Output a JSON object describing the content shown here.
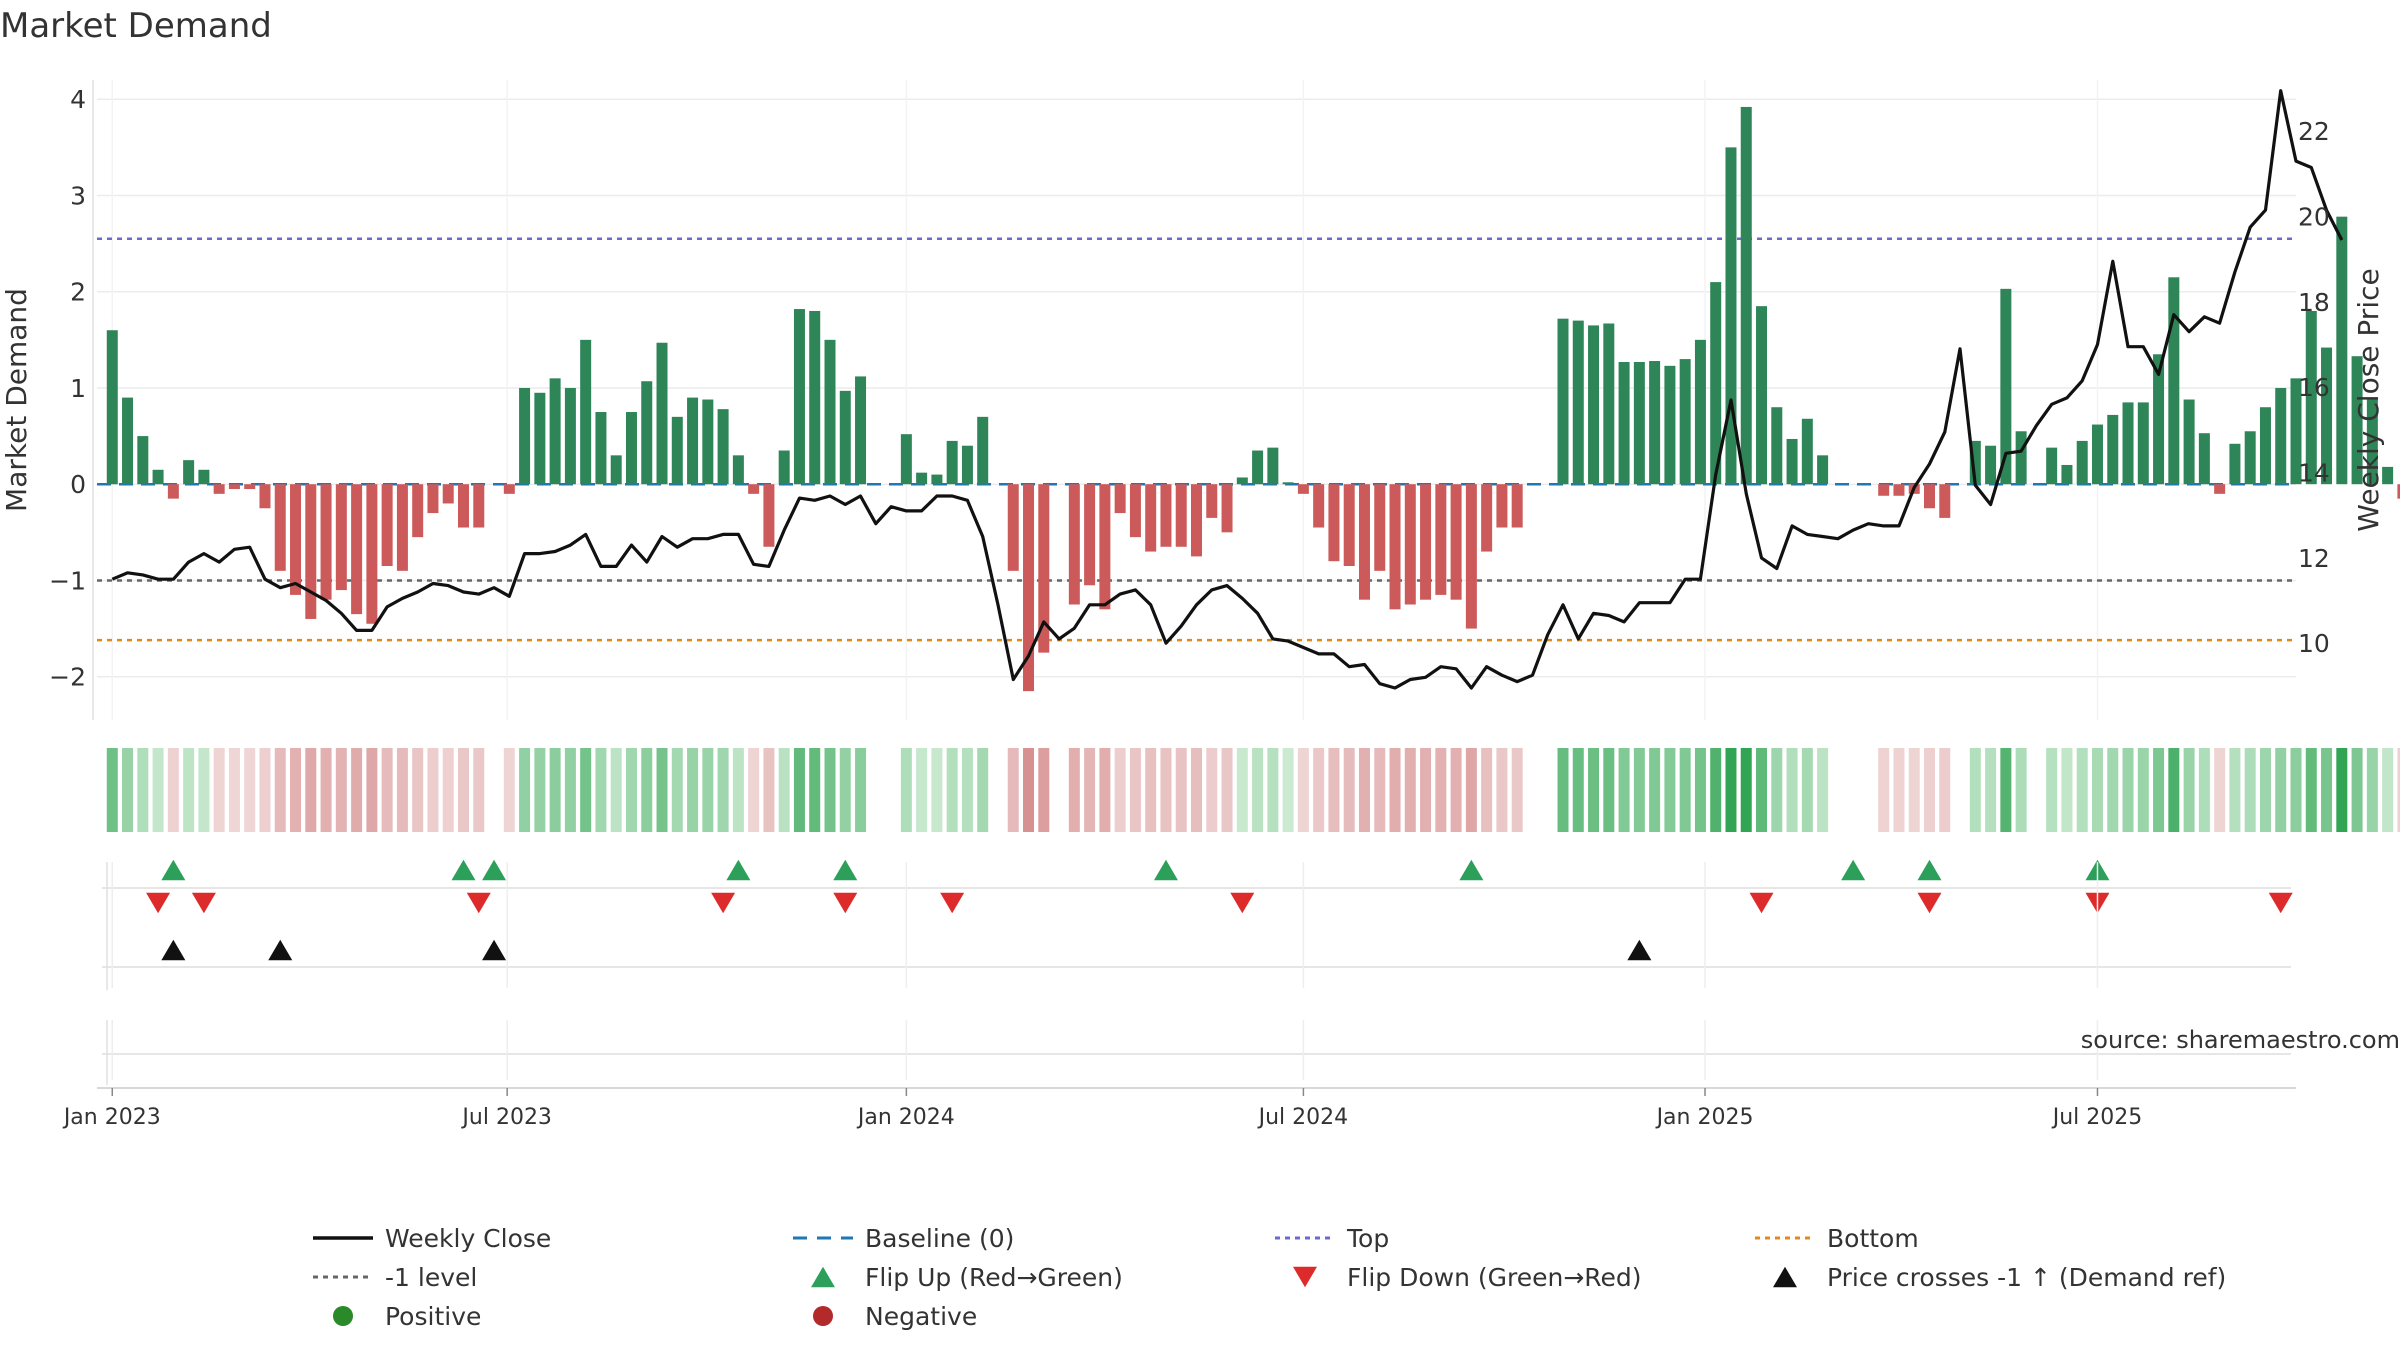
{
  "chart_data": {
    "type": "bar",
    "title": "Market Demand",
    "source": "source: sharemaestro.com",
    "ylabel": "Market Demand",
    "y2label": "Weekly Close Price",
    "ylim": [
      -2.45,
      4.2
    ],
    "y2lim": [
      8.2,
      23.2
    ],
    "yticks": [
      4,
      3,
      2,
      1,
      0,
      -1,
      -2
    ],
    "ytick_labels": [
      "4",
      "3",
      "2",
      "1",
      "0",
      "−1",
      "−2"
    ],
    "y2ticks": [
      22,
      20,
      18,
      16,
      14,
      12,
      10
    ],
    "y2tick_labels": [
      "22",
      "20",
      "18",
      "16",
      "14",
      "12",
      "10"
    ],
    "x_start_week": -1,
    "x_end_week": 143,
    "xticks": [
      {
        "label": "Jan 2023",
        "week": 0
      },
      {
        "label": "Jul 2023",
        "week": 25.86
      },
      {
        "label": "Jan 2024",
        "week": 52
      },
      {
        "label": "Jul 2024",
        "week": 78
      },
      {
        "label": "Jan 2025",
        "week": 104.3
      },
      {
        "label": "Jul 2025",
        "week": 130
      }
    ],
    "reference_lines": [
      {
        "name": "Top",
        "value": 2.55,
        "color": "#6a6acc"
      },
      {
        "name": "-1 level",
        "value": -1,
        "color": "#666666"
      },
      {
        "name": "Bottom",
        "value": -1.62,
        "color": "#e08a1e"
      }
    ],
    "demand": [
      1.6,
      0.9,
      0.5,
      0.15,
      -0.15,
      0.25,
      0.15,
      -0.1,
      -0.05,
      -0.05,
      -0.25,
      -0.9,
      -1.15,
      -1.4,
      -1.2,
      -1.1,
      -1.35,
      -1.45,
      -0.85,
      -0.9,
      -0.55,
      -0.3,
      -0.2,
      -0.45,
      -0.45,
      0.0,
      -0.1,
      1.0,
      0.95,
      1.1,
      1.0,
      1.5,
      0.75,
      0.3,
      0.75,
      1.07,
      1.47,
      0.7,
      0.9,
      0.88,
      0.78,
      0.3,
      -0.1,
      -0.65,
      0.35,
      1.82,
      1.8,
      1.5,
      0.97,
      1.12,
      0.0,
      0.0,
      0.52,
      0.12,
      0.1,
      0.45,
      0.4,
      0.7,
      0.0,
      -0.9,
      -2.15,
      -1.75,
      0.0,
      -1.25,
      -1.05,
      -1.3,
      -0.3,
      -0.55,
      -0.7,
      -0.65,
      -0.65,
      -0.75,
      -0.35,
      -0.5,
      0.07,
      0.35,
      0.38,
      0.02,
      -0.1,
      -0.45,
      -0.8,
      -0.85,
      -1.2,
      -0.9,
      -1.3,
      -1.25,
      -1.2,
      -1.15,
      -1.2,
      -1.5,
      -0.7,
      -0.45,
      -0.45,
      0.0,
      0.0,
      1.72,
      1.7,
      1.65,
      1.67,
      1.27,
      1.27,
      1.28,
      1.23,
      1.3,
      1.5,
      2.1,
      3.5,
      3.92,
      1.85,
      0.8,
      0.47,
      0.68,
      0.3,
      0.0,
      0.0,
      0.0,
      -0.12,
      -0.12,
      -0.1,
      -0.25,
      -0.35,
      0.0,
      0.45,
      0.4,
      2.03,
      0.55,
      0.0,
      0.38,
      0.2,
      0.45,
      0.62,
      0.72,
      0.85,
      0.85,
      1.35,
      2.15,
      0.88,
      0.53,
      -0.1,
      0.42,
      0.55,
      0.8,
      1.0,
      1.1,
      1.8,
      1.42,
      2.78,
      1.33,
      0.88,
      0.18,
      -0.15
    ],
    "close": [
      11.5,
      11.65,
      11.6,
      11.5,
      11.5,
      11.9,
      12.1,
      11.9,
      12.2,
      12.25,
      11.5,
      11.3,
      11.4,
      11.2,
      11.0,
      10.7,
      10.3,
      10.3,
      10.85,
      11.05,
      11.2,
      11.4,
      11.35,
      11.2,
      11.15,
      11.3,
      11.1,
      12.1,
      12.1,
      12.15,
      12.3,
      12.55,
      11.8,
      11.8,
      12.3,
      11.9,
      12.5,
      12.25,
      12.45,
      12.45,
      12.55,
      12.55,
      11.85,
      11.8,
      12.65,
      13.4,
      13.35,
      13.45,
      13.25,
      13.45,
      12.8,
      13.2,
      13.1,
      13.1,
      13.45,
      13.45,
      13.35,
      12.5,
      10.9,
      9.15,
      9.7,
      10.5,
      10.1,
      10.35,
      10.9,
      10.9,
      11.15,
      11.25,
      10.9,
      10.0,
      10.4,
      10.9,
      11.25,
      11.35,
      11.05,
      10.7,
      10.1,
      10.05,
      9.9,
      9.75,
      9.75,
      9.45,
      9.5,
      9.05,
      8.95,
      9.15,
      9.2,
      9.45,
      9.4,
      8.95,
      9.45,
      9.25,
      9.1,
      9.25,
      10.2,
      10.9,
      10.1,
      10.7,
      10.65,
      10.5,
      10.95,
      10.95,
      10.95,
      11.5,
      11.5,
      13.95,
      15.7,
      13.5,
      12.0,
      11.75,
      12.75,
      12.55,
      12.5,
      12.45,
      12.65,
      12.8,
      12.75,
      12.75,
      13.65,
      14.2,
      14.95,
      16.9,
      13.7,
      13.25,
      14.45,
      14.5,
      15.1,
      15.6,
      15.75,
      16.15,
      17.0,
      18.95,
      16.95,
      16.95,
      16.3,
      17.7,
      17.3,
      17.65,
      17.5,
      18.7,
      19.75,
      20.15,
      22.95,
      21.3,
      21.15,
      20.15,
      19.45
    ],
    "flip_up_weeks": [
      4,
      23,
      25,
      41,
      48,
      69,
      89,
      114,
      119,
      130
    ],
    "flip_down_weeks": [
      3,
      6,
      24,
      40,
      48,
      55,
      74,
      108,
      119,
      130,
      142
    ],
    "price_cross_up_weeks": [
      4,
      11,
      25,
      100
    ],
    "series": [
      {
        "name": "Weekly Close",
        "color": "#111111"
      },
      {
        "name": "Baseline (0)",
        "color": "#1f77b4"
      },
      {
        "name": "Positive",
        "color": "#2e8557"
      },
      {
        "name": "Negative",
        "color": "#cc5555"
      }
    ]
  },
  "legend": {
    "items": [
      {
        "label": "Weekly Close",
        "kind": "solid",
        "color": "#111111"
      },
      {
        "label": "Baseline (0)",
        "kind": "dash",
        "color": "#1f77b4"
      },
      {
        "label": "Top",
        "kind": "dot",
        "color": "#6a6acc"
      },
      {
        "label": "Bottom",
        "kind": "dot",
        "color": "#e08a1e"
      },
      {
        "label": "-1 level",
        "kind": "dot",
        "color": "#666666"
      },
      {
        "label": "Flip Up (Red→Green)",
        "kind": "tri-up",
        "color": "#2ca05a"
      },
      {
        "label": "Flip Down (Green→Red)",
        "kind": "tri-down",
        "color": "#dd2b2b"
      },
      {
        "label": "Price crosses -1 ↑ (Demand ref)",
        "kind": "tri-up",
        "color": "#111111"
      },
      {
        "label": "Positive",
        "kind": "circle",
        "color": "#2a8a2a"
      },
      {
        "label": "Negative",
        "kind": "circle",
        "color": "#b32a2a"
      }
    ]
  }
}
